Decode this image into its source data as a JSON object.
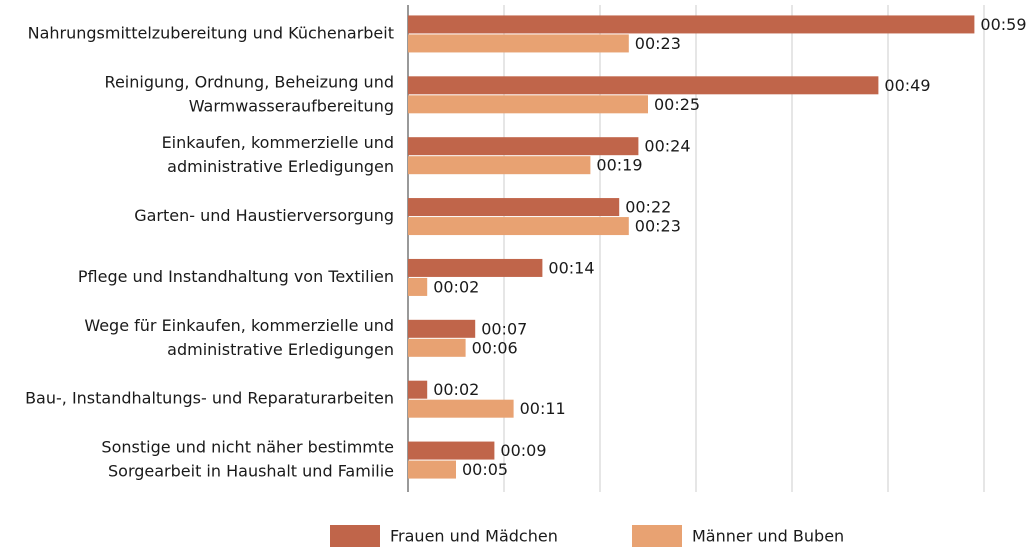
{
  "chart_data": {
    "type": "hbar",
    "categories": [
      [
        "Nahrungsmittelzubereitung und Küchenarbeit"
      ],
      [
        "Reinigung, Ordnung, Beheizung und",
        "Warmwasseraufbereitung"
      ],
      [
        "Einkaufen, kommerzielle und",
        "administrative Erledigungen"
      ],
      [
        "Garten- und Haustierversorgung"
      ],
      [
        "Pflege und Instandhaltung von Textilien"
      ],
      [
        "Wege für Einkaufen, kommerzielle und",
        "administrative Erledigungen"
      ],
      [
        "Bau-, Instandhaltungs- und Reparaturarbeiten"
      ],
      [
        "Sonstige und nicht näher bestimmte",
        "Sorgearbeit in Haushalt und Familie"
      ]
    ],
    "series": [
      {
        "name": "Frauen und Mädchen",
        "color": "#c0654a",
        "values": [
          59,
          49,
          24,
          22,
          14,
          7,
          2,
          9
        ],
        "value_labels": [
          "00:59",
          "00:49",
          "00:24",
          "00:22",
          "00:14",
          "00:07",
          "00:02",
          "00:09"
        ]
      },
      {
        "name": "Männer und Buben",
        "color": "#e8a272",
        "values": [
          23,
          25,
          19,
          23,
          2,
          6,
          11,
          5
        ],
        "value_labels": [
          "00:23",
          "00:25",
          "00:19",
          "00:23",
          "00:02",
          "00:06",
          "00:11",
          "00:05"
        ]
      }
    ],
    "xlim": [
      0,
      60
    ],
    "xticks": [
      0,
      10,
      20,
      30,
      40,
      50,
      60
    ],
    "grid": true,
    "legend": "bottom"
  }
}
